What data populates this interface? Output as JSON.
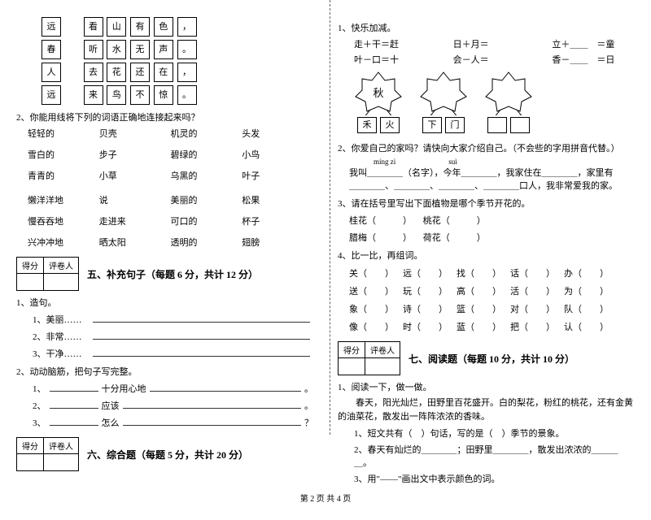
{
  "left": {
    "poem_grid": {
      "col1": [
        "远",
        "春",
        "人",
        "远"
      ],
      "rows": [
        [
          "看",
          "山",
          "有",
          "色",
          "，"
        ],
        [
          "听",
          "水",
          "无",
          "声",
          "。"
        ],
        [
          "去",
          "花",
          "还",
          "在",
          "，"
        ],
        [
          "来",
          "鸟",
          "不",
          "惊",
          "。"
        ]
      ]
    },
    "q2_intro": "2、你能用线将下列的词语正确地连接起来吗？",
    "match_rows": [
      [
        "轻轻的",
        "贝壳",
        "机灵的",
        "头发"
      ],
      [
        "雪白的",
        "步子",
        "碧绿的",
        "小鸟"
      ],
      [
        "青青的",
        "小草",
        "乌黑的",
        "叶子"
      ],
      [
        "懒洋洋地",
        "说",
        "美丽的",
        "松果"
      ],
      [
        "慢吞吞地",
        "走进来",
        "可口的",
        "杯子"
      ],
      [
        "兴冲冲地",
        "晒太阳",
        "透明的",
        "翅膀"
      ]
    ],
    "score_labels": [
      "得分",
      "评卷人"
    ],
    "section5_title": "五、补充句子（每题 6 分，共计 12 分）",
    "s5_q1": "1、造句。",
    "s5_items": [
      "1、美丽……",
      "2、非常……",
      "3、干净……"
    ],
    "s5_q2": "2、动动脑筋，把句子写完整。",
    "s5_q2_items": [
      {
        "prefix": "1、",
        "label": "十分用心地",
        "tail": ""
      },
      {
        "prefix": "2、",
        "label": "应该",
        "tail": ""
      },
      {
        "prefix": "3、",
        "label": "怎么",
        "tail": "？"
      }
    ],
    "section6_title": "六、综合题（每题 5 分，共计 20 分）"
  },
  "right": {
    "q1": "1、快乐加减。",
    "eq_rows": [
      [
        "走＋干＝赶",
        "日＋月＝",
        "立＋＿＿　＝童"
      ],
      [
        "叶－口＝十",
        "会－人＝",
        "香－＿＿　＝日"
      ]
    ],
    "stars": [
      {
        "center": "秋",
        "boxes": [
          "禾",
          "火"
        ]
      },
      {
        "center": "",
        "boxes": [
          "下",
          "门"
        ]
      },
      {
        "center": "",
        "boxes": [
          "",
          ""
        ]
      }
    ],
    "q2_intro": "2、你爱自己的家吗？请快向大家介绍自己。（不会些的字用拼音代替。）",
    "q2_pinyin1": "míng zì",
    "q2_pinyin2": "suì",
    "q2_line1_a": "我叫＿＿＿＿（名字），今年＿＿＿＿",
    "q2_line1_b": "，我家住在＿＿＿＿，家里有",
    "q2_line2": "＿＿＿＿、＿＿＿＿、＿＿＿＿、＿＿＿＿口人，我非常爱我的家。",
    "q3": "3、请在括号里写出下面植物是哪个季节开花的。",
    "q3_items1": [
      "桂花（　　　）",
      "桃花（　　　）"
    ],
    "q3_items2": [
      "腊梅（　　　）",
      "荷花（　　　）"
    ],
    "q4": "4、比一比，再组词。",
    "q4_lines": [
      [
        "关（　　）",
        "远（　　）",
        "找（　　）",
        "话（　　）",
        "办（　　）"
      ],
      [
        "送（　　）",
        "玩（　　）",
        "高（　　）",
        "活（　　）",
        "为（　　）"
      ],
      [
        "象（　　）",
        "诗（　　）",
        "篮（　　）",
        "对（　　）",
        "队（　　）"
      ],
      [
        "像（　　）",
        "时（　　）",
        "蓝（　　）",
        "把（　　）",
        "认（　　）"
      ]
    ],
    "section7_title": "七、阅读题（每题 10 分，共计 10 分）",
    "r_q1": "1、阅读一下，做一做。",
    "passage": "　　春天，阳光灿烂，田野里百花盛开。白的梨花，粉红的桃花，还有金黄的油菜花，散发出一阵阵浓浓的香味。",
    "r_sub1": "1、短文共有（　）句话，写的是（　）季节的景象。",
    "r_sub2": "2、春天有灿烂的＿＿＿＿；田野里＿＿＿＿，散发出浓浓的＿＿＿＿。",
    "r_sub3": "3、用\"——\"画出文中表示颜色的词。"
  },
  "footer": "第 2 页 共 4 页",
  "colors": {
    "line": "#000"
  }
}
